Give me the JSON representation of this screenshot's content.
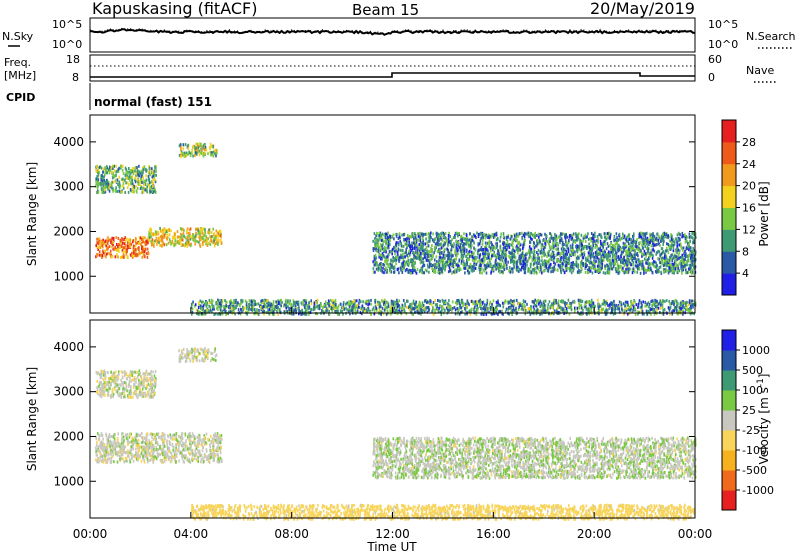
{
  "header": {
    "station": "Kapuskasing (fitACF)",
    "beam": "Beam 15",
    "date": "20/May/2019"
  },
  "noise_panel": {
    "left_label": "N.Sky",
    "right_label": "N.Search",
    "left_ticks": [
      "10^5",
      "10^0"
    ],
    "right_ticks": [
      "10^5",
      "10^0"
    ]
  },
  "freq_panel": {
    "left_label_line1": "Freq.",
    "left_label_line2": "[MHz]",
    "right_label": "Nave",
    "left_ticks": [
      "18",
      "8"
    ],
    "right_ticks": [
      "60",
      "0"
    ]
  },
  "cpid": {
    "label": "CPID",
    "value": "normal (fast) 151"
  },
  "x_axis": {
    "title": "Time UT",
    "ticks": [
      "00:00",
      "04:00",
      "08:00",
      "12:00",
      "16:00",
      "20:00",
      "00:00"
    ]
  },
  "colors": {
    "power": [
      "#1f1fe6",
      "#2a5aa6",
      "#3d9a74",
      "#7ac943",
      "#f2d21e",
      "#f29a1e",
      "#ef5a1a",
      "#e62020"
    ],
    "velocity": [
      "#e62020",
      "#ef6a1a",
      "#f6b11e",
      "#f8d45a",
      "#c8c8c0",
      "#7ac943",
      "#3d9a74",
      "#2a5aa6",
      "#1f1fe6"
    ]
  },
  "chart_data": [
    {
      "type": "heatmap",
      "title": "",
      "xlabel": "Time UT",
      "ylabel": "Slant Range [km]",
      "xlim": [
        0,
        24
      ],
      "ylim": [
        180,
        4600
      ],
      "yticks": [
        "1000",
        "2000",
        "3000",
        "4000"
      ],
      "colorbar": {
        "label": "Power [dB]",
        "ticks": [
          "4",
          "8",
          "12",
          "16",
          "20",
          "24",
          "28"
        ],
        "range": [
          0,
          32
        ]
      },
      "features": [
        {
          "t": [
            0.2,
            2.3
          ],
          "r": [
            1450,
            1900
          ],
          "value": 24
        },
        {
          "t": [
            2.3,
            5.2
          ],
          "r": [
            1700,
            2100
          ],
          "value": 18
        },
        {
          "t": [
            0.2,
            2.6
          ],
          "r": [
            2900,
            3500
          ],
          "value": 12
        },
        {
          "t": [
            3.5,
            5.0
          ],
          "r": [
            3700,
            4000
          ],
          "value": 14
        },
        {
          "t": [
            11.2,
            24.0
          ],
          "r": [
            1100,
            2000
          ],
          "value": 9
        },
        {
          "t": [
            4.0,
            24.0
          ],
          "r": [
            180,
            500
          ],
          "value": 10
        }
      ]
    },
    {
      "type": "heatmap",
      "title": "",
      "xlabel": "Time UT",
      "ylabel": "Slant Range [km]",
      "xlim": [
        0,
        24
      ],
      "ylim": [
        180,
        4600
      ],
      "yticks": [
        "1000",
        "2000",
        "3000",
        "4000"
      ],
      "colorbar": {
        "label": "Velocity [m s^-1]",
        "ticks": [
          "1000",
          "500",
          "100",
          "25",
          "-25",
          "-100",
          "-500",
          "-1000"
        ]
      },
      "features": [
        {
          "t": [
            0.2,
            5.2
          ],
          "r": [
            1450,
            2100
          ],
          "value": 0
        },
        {
          "t": [
            0.2,
            2.6
          ],
          "r": [
            2900,
            3500
          ],
          "value": 0
        },
        {
          "t": [
            3.5,
            5.0
          ],
          "r": [
            3700,
            4000
          ],
          "value": 0
        },
        {
          "t": [
            11.2,
            24.0
          ],
          "r": [
            1100,
            2000
          ],
          "value": 10
        },
        {
          "t": [
            4.0,
            24.0
          ],
          "r": [
            180,
            500
          ],
          "value": -60
        }
      ]
    }
  ]
}
